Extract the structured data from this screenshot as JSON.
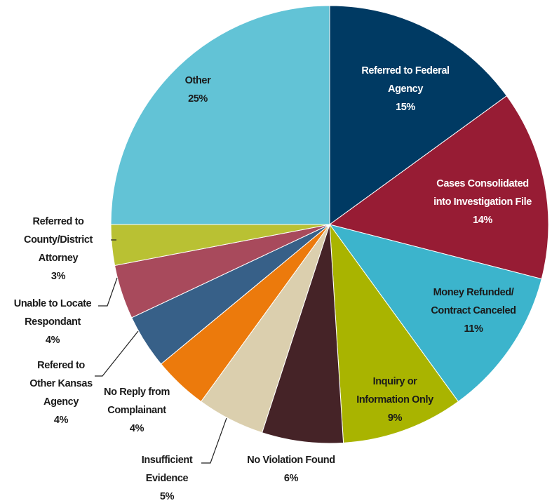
{
  "chart_data": {
    "type": "pie",
    "categories": [
      "Referred to Federal Agency",
      "Cases Consolidated into Investigation File",
      "Money Refunded/ Contract Canceled",
      "Inquiry or Information Only",
      "No Violation Found",
      "Insufficient Evidence",
      "No Reply from Complainant",
      "Refered to Other Kansas Agency",
      "Unable to Locate Respondant",
      "Referred to County/District Attorney",
      "Other"
    ],
    "values": [
      15,
      14,
      11,
      9,
      6,
      5,
      4,
      4,
      4,
      3,
      25
    ],
    "value_labels": [
      "15%",
      "14%",
      "11%",
      "9%",
      "6%",
      "5%",
      "4%",
      "4%",
      "4%",
      "3%",
      "25%"
    ],
    "colors": [
      "#003a63",
      "#971c34",
      "#3cb4cc",
      "#a9b400",
      "#452327",
      "#dbcfae",
      "#ec7a0c",
      "#376088",
      "#a84a5c",
      "#b9c133",
      "#62c3d6"
    ]
  }
}
